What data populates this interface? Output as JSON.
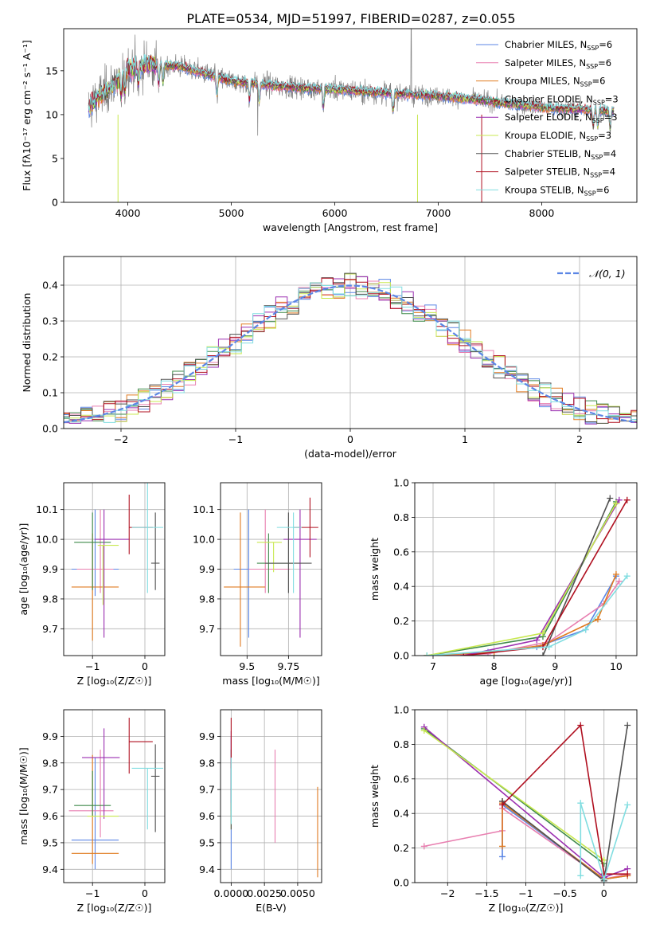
{
  "title": "PLATE=0534, MJD=51997, FIBERID=0287, z=0.055",
  "colors": {
    "Chabrier MILES": "#5b86e5",
    "Salpeter MILES": "#e87fb0",
    "Kroupa MILES": "#e07b20",
    "Chabrier ELODIE": "#3f8a4a",
    "Salpeter ELODIE": "#9b2fb0",
    "Kroupa ELODIE": "#c8e850",
    "Chabrier STELIB": "#505050",
    "Salpeter STELIB": "#b01020",
    "Kroupa STELIB": "#80dde0",
    "data": "#808080",
    "normal": "#5b86e5"
  },
  "chart_data": [
    {
      "id": "spectrum",
      "type": "line",
      "xlabel": "wavelength [Angstrom, rest frame]",
      "ylabel": "Flux [fλ10⁻¹⁷ erg cm⁻² s⁻¹ A⁻¹]",
      "xlim": [
        3380,
        8920
      ],
      "ylim": [
        0,
        19.8
      ],
      "xticks": [
        4000,
        5000,
        6000,
        7000,
        8000
      ],
      "yticks": [
        0,
        5,
        10,
        15
      ],
      "legend_position": "top-right",
      "legend": [
        {
          "label": "Chabrier MILES, N",
          "sub": "SSP",
          "eq": "=6",
          "key": "Chabrier MILES"
        },
        {
          "label": "Salpeter MILES, N",
          "sub": "SSP",
          "eq": "=6",
          "key": "Salpeter MILES"
        },
        {
          "label": "Kroupa MILES, N",
          "sub": "SSP",
          "eq": "=6",
          "key": "Kroupa MILES"
        },
        {
          "label": "Chabrier ELODIE, N",
          "sub": "SSP",
          "eq": "=3",
          "key": "Chabrier ELODIE"
        },
        {
          "label": "Salpeter ELODIE, N",
          "sub": "SSP",
          "eq": "=3",
          "key": "Salpeter ELODIE"
        },
        {
          "label": "Kroupa ELODIE, N",
          "sub": "SSP",
          "eq": "=3",
          "key": "Kroupa ELODIE"
        },
        {
          "label": "Chabrier STELIB, N",
          "sub": "SSP",
          "eq": "=4",
          "key": "Chabrier STELIB"
        },
        {
          "label": "Salpeter STELIB, N",
          "sub": "SSP",
          "eq": "=4",
          "key": "Salpeter STELIB"
        },
        {
          "label": "Kroupa STELIB, N",
          "sub": "SSP",
          "eq": "=6",
          "key": "Kroupa STELIB"
        }
      ],
      "continuum": [
        [
          3600,
          10.5
        ],
        [
          3700,
          11.8
        ],
        [
          3800,
          12.8
        ],
        [
          3900,
          13.8
        ],
        [
          4000,
          15.2
        ],
        [
          4200,
          15.8
        ],
        [
          4500,
          15.5
        ],
        [
          4800,
          14.5
        ],
        [
          5000,
          13.8
        ],
        [
          5200,
          13.6
        ],
        [
          5500,
          13.2
        ],
        [
          5800,
          13.0
        ],
        [
          6000,
          12.9
        ],
        [
          6300,
          12.6
        ],
        [
          6600,
          12.4
        ],
        [
          6900,
          12.2
        ],
        [
          7200,
          11.9
        ],
        [
          7500,
          11.5
        ],
        [
          7800,
          11.1
        ],
        [
          8100,
          10.7
        ],
        [
          8400,
          10.6
        ],
        [
          8700,
          10.4
        ]
      ],
      "data_range": [
        3620,
        8700
      ]
    },
    {
      "id": "residuals",
      "type": "histogram",
      "xlabel": "(data-model)/error",
      "ylabel": "Normed distribution",
      "xlim": [
        -2.5,
        2.5
      ],
      "ylim": [
        0,
        0.48
      ],
      "xticks": [
        -2,
        -1,
        0,
        1,
        2
      ],
      "yticks": [
        0.0,
        0.1,
        0.2,
        0.3,
        0.4
      ],
      "normal_label": "𝒩(0, 1)",
      "legend_position": "top-right",
      "bin_width": 0.1
    },
    {
      "id": "age-vs-Z",
      "type": "errorbar",
      "xlabel": "Z [log₁₀(Z/Z☉)]",
      "ylabel": "age  [log₁₀(age/yr)]",
      "xlim": [
        -1.55,
        0.38
      ],
      "ylim": [
        9.61,
        10.19
      ],
      "xticks": [
        -1,
        0
      ],
      "yticks": [
        9.7,
        9.8,
        9.9,
        10.0,
        10.1
      ],
      "points": [
        {
          "key": "Chabrier MILES",
          "x": -0.95,
          "y": 9.9,
          "xe": [
            0.45,
            0.45
          ],
          "ye": [
            0.09,
            0.2
          ]
        },
        {
          "key": "Salpeter MILES",
          "x": -0.85,
          "y": 9.9,
          "xe": [
            0.45,
            0.25
          ],
          "ye": [
            0.08,
            0.2
          ]
        },
        {
          "key": "Kroupa MILES",
          "x": -1.0,
          "y": 9.84,
          "xe": [
            0.4,
            0.5
          ],
          "ye": [
            0.18,
            0.18
          ]
        },
        {
          "key": "Chabrier ELODIE",
          "x": -1.0,
          "y": 9.99,
          "xe": [
            0.35,
            0.35
          ],
          "ye": [
            0.16,
            0.1
          ]
        },
        {
          "key": "Salpeter ELODIE",
          "x": -0.78,
          "y": 10.0,
          "xe": [
            0.18,
            0.48
          ],
          "ye": [
            0.33,
            0.1
          ]
        },
        {
          "key": "Kroupa ELODIE",
          "x": -0.8,
          "y": 9.98,
          "xe": [
            0.1,
            0.3
          ],
          "ye": [
            0.2,
            0.0
          ]
        },
        {
          "key": "Chabrier STELIB",
          "x": 0.2,
          "y": 9.92,
          "xe": [
            0.08,
            0.08
          ],
          "ye": [
            0.09,
            0.17
          ]
        },
        {
          "key": "Salpeter STELIB",
          "x": -0.3,
          "y": 10.04,
          "xe": [
            0.0,
            0.45
          ],
          "ye": [
            0.09,
            0.11
          ]
        },
        {
          "key": "Kroupa STELIB",
          "x": 0.05,
          "y": 10.04,
          "xe": [
            0.3,
            0.3
          ],
          "ye": [
            0.22,
            0.2
          ]
        }
      ]
    },
    {
      "id": "age-vs-mass",
      "type": "errorbar",
      "xlabel": "mass [log₁₀(M/M☉)]",
      "ylabel": "",
      "xlim": [
        9.34,
        9.95
      ],
      "ylim": [
        9.61,
        10.19
      ],
      "xticks": [
        9.5,
        9.75
      ],
      "yticks": [
        9.7,
        9.8,
        9.9,
        10.0,
        10.1
      ],
      "points": [
        {
          "key": "Chabrier MILES",
          "x": 9.51,
          "y": 9.9,
          "xe": [
            0.09,
            0.09
          ],
          "ye": [
            0.23,
            0.2
          ]
        },
        {
          "key": "Salpeter MILES",
          "x": 9.61,
          "y": 9.9,
          "xe": [
            0.1,
            0.15
          ],
          "ye": [
            0.08,
            0.2
          ]
        },
        {
          "key": "Kroupa MILES",
          "x": 9.46,
          "y": 9.84,
          "xe": [
            0.1,
            0.15
          ],
          "ye": [
            0.2,
            0.25
          ]
        },
        {
          "key": "Chabrier ELODIE",
          "x": 9.63,
          "y": 9.92,
          "xe": [
            0.07,
            0.15
          ],
          "ye": [
            0.1,
            0.1
          ]
        },
        {
          "key": "Salpeter ELODIE",
          "x": 9.82,
          "y": 10.0,
          "xe": [
            0.1,
            0.1
          ],
          "ye": [
            0.33,
            0.1
          ]
        },
        {
          "key": "Kroupa ELODIE",
          "x": 9.66,
          "y": 9.99,
          "xe": [
            0.1,
            0.05
          ],
          "ye": [
            0.1,
            0.0
          ]
        },
        {
          "key": "Chabrier STELIB",
          "x": 9.75,
          "y": 9.92,
          "xe": [
            0.14,
            0.14
          ],
          "ye": [
            0.1,
            0.17
          ]
        },
        {
          "key": "Salpeter STELIB",
          "x": 9.88,
          "y": 10.04,
          "xe": [
            0.1,
            0.05
          ],
          "ye": [
            0.1,
            0.1
          ]
        },
        {
          "key": "Kroupa STELIB",
          "x": 9.78,
          "y": 10.04,
          "xe": [
            0.1,
            0.05
          ],
          "ye": [
            0.22,
            0.05
          ]
        }
      ]
    },
    {
      "id": "weight-vs-age",
      "type": "line",
      "xlabel": "age  [log₁₀(age/yr)]",
      "ylabel": "mass weight",
      "xlim": [
        6.7,
        10.34
      ],
      "ylim": [
        0,
        1.0
      ],
      "xticks": [
        7,
        8,
        9,
        10
      ],
      "yticks": [
        0.0,
        0.2,
        0.4,
        0.6,
        0.8,
        1.0
      ],
      "series": [
        {
          "key": "Chabrier MILES",
          "x": [
            6.9,
            7.9,
            8.7,
            9.5,
            10.0
          ],
          "y": [
            0.0,
            0.02,
            0.05,
            0.15,
            0.46
          ]
        },
        {
          "key": "Salpeter MILES",
          "x": [
            6.9,
            7.9,
            8.9,
            9.8,
            10.05
          ],
          "y": [
            0.0,
            0.01,
            0.08,
            0.3,
            0.43
          ]
        },
        {
          "key": "Kroupa MILES",
          "x": [
            6.9,
            8.0,
            8.8,
            9.7,
            10.0
          ],
          "y": [
            0.0,
            0.02,
            0.06,
            0.21,
            0.47
          ]
        },
        {
          "key": "Chabrier ELODIE",
          "x": [
            6.9,
            8.8,
            10.0
          ],
          "y": [
            0.0,
            0.11,
            0.89
          ]
        },
        {
          "key": "Salpeter ELODIE",
          "x": [
            7.5,
            8.7,
            10.05
          ],
          "y": [
            0.0,
            0.09,
            0.9
          ]
        },
        {
          "key": "Kroupa ELODIE",
          "x": [
            6.9,
            8.8,
            10.0
          ],
          "y": [
            0.0,
            0.13,
            0.88
          ]
        },
        {
          "key": "Chabrier STELIB",
          "x": [
            7.5,
            8.8,
            9.9
          ],
          "y": [
            0.0,
            0.0,
            0.91
          ]
        },
        {
          "key": "Salpeter STELIB",
          "x": [
            7.5,
            8.8,
            10.18
          ],
          "y": [
            0.0,
            0.05,
            0.9
          ]
        },
        {
          "key": "Kroupa STELIB",
          "x": [
            6.9,
            8.9,
            9.5,
            10.18
          ],
          "y": [
            0.0,
            0.05,
            0.15,
            0.46
          ]
        }
      ]
    },
    {
      "id": "mass-vs-Z",
      "type": "errorbar",
      "xlabel": "Z [log₁₀(Z/Z☉)]",
      "ylabel": "mass [log₁₀(M/M☉)]",
      "xlim": [
        -1.55,
        0.38
      ],
      "ylim": [
        9.35,
        10.0
      ],
      "xticks": [
        -1,
        0
      ],
      "yticks": [
        9.4,
        9.5,
        9.6,
        9.7,
        9.8,
        9.9
      ],
      "points": [
        {
          "key": "Chabrier MILES",
          "x": -0.95,
          "y": 9.51,
          "xe": [
            0.45,
            0.45
          ],
          "ye": [
            0.11,
            0.31
          ]
        },
        {
          "key": "Salpeter MILES",
          "x": -0.85,
          "y": 9.62,
          "xe": [
            0.6,
            0.25
          ],
          "ye": [
            0.1,
            0.23
          ]
        },
        {
          "key": "Kroupa MILES",
          "x": -1.0,
          "y": 9.46,
          "xe": [
            0.4,
            0.5
          ],
          "ye": [
            0.04,
            0.37
          ]
        },
        {
          "key": "Chabrier ELODIE",
          "x": -1.0,
          "y": 9.64,
          "xe": [
            0.35,
            0.35
          ],
          "ye": [
            0.04,
            0.13
          ]
        },
        {
          "key": "Salpeter ELODIE",
          "x": -0.78,
          "y": 9.82,
          "xe": [
            0.42,
            0.3
          ],
          "ye": [
            0.23,
            0.11
          ]
        },
        {
          "key": "Kroupa ELODIE",
          "x": -0.8,
          "y": 9.6,
          "xe": [
            0.3,
            0.3
          ],
          "ye": [
            0.0,
            0.0
          ]
        },
        {
          "key": "Chabrier STELIB",
          "x": 0.2,
          "y": 9.75,
          "xe": [
            0.08,
            0.08
          ],
          "ye": [
            0.21,
            0.12
          ]
        },
        {
          "key": "Salpeter STELIB",
          "x": -0.3,
          "y": 9.88,
          "xe": [
            0.0,
            0.45
          ],
          "ye": [
            0.12,
            0.09
          ]
        },
        {
          "key": "Kroupa STELIB",
          "x": 0.05,
          "y": 9.78,
          "xe": [
            0.3,
            0.3
          ],
          "ye": [
            0.23,
            0.0
          ]
        }
      ]
    },
    {
      "id": "mass-vs-ebv",
      "type": "errorbar",
      "xlabel": "E(B-V)",
      "ylabel": "",
      "xlim": [
        -0.0008,
        0.0068
      ],
      "ylim": [
        9.35,
        10.0
      ],
      "xticks": [
        0.0,
        0.0025,
        0.005
      ],
      "xticklabels": [
        "0.0000",
        "0.0025",
        "0.0050"
      ],
      "yticks": [
        9.4,
        9.5,
        9.6,
        9.7,
        9.8,
        9.9
      ],
      "points": [
        {
          "key": "Chabrier MILES",
          "x": 0.0,
          "y": 9.6,
          "xe": [
            0,
            0
          ],
          "ye": [
            0.2,
            0.3
          ]
        },
        {
          "key": "Salpeter MILES",
          "x": 0.0033,
          "y": 9.62,
          "xe": [
            0,
            0
          ],
          "ye": [
            0.12,
            0.23
          ]
        },
        {
          "key": "Kroupa MILES",
          "x": 0.0065,
          "y": 9.54,
          "xe": [
            0,
            0
          ],
          "ye": [
            0.17,
            0.17
          ]
        },
        {
          "key": "Chabrier ELODIE",
          "x": 0.0,
          "y": 9.7,
          "xe": [
            0,
            0
          ],
          "ye": [
            0.1,
            0.1
          ]
        },
        {
          "key": "Salpeter ELODIE",
          "x": 0.0,
          "y": 9.82,
          "xe": [
            0,
            0
          ],
          "ye": [
            0.2,
            0.1
          ]
        },
        {
          "key": "Kroupa ELODIE",
          "x": 0.0,
          "y": 9.6,
          "xe": [
            0,
            0
          ],
          "ye": [
            0.05,
            0.05
          ]
        },
        {
          "key": "Chabrier STELIB",
          "x": 0.0,
          "y": 9.75,
          "xe": [
            0,
            0
          ],
          "ye": [
            0.2,
            0.1
          ]
        },
        {
          "key": "Salpeter STELIB",
          "x": 0.0,
          "y": 9.88,
          "xe": [
            0,
            0
          ],
          "ye": [
            0.1,
            0.09
          ]
        },
        {
          "key": "Kroupa STELIB",
          "x": 0.0,
          "y": 9.72,
          "xe": [
            0,
            0
          ],
          "ye": [
            0.15,
            0.1
          ]
        }
      ]
    },
    {
      "id": "weight-vs-Z",
      "type": "line",
      "xlabel": "Z [log₁₀(Z/Z☉)]",
      "ylabel": "mass weight",
      "xlim": [
        -2.42,
        0.42
      ],
      "ylim": [
        0,
        1.0
      ],
      "xticks": [
        -2.0,
        -1.5,
        -1.0,
        -0.5,
        0.0
      ],
      "yticks": [
        0.0,
        0.2,
        0.4,
        0.6,
        0.8,
        1.0
      ],
      "series": [
        {
          "key": "Chabrier MILES",
          "x": [
            -1.3,
            -1.3,
            -1.3,
            0.0,
            0.3
          ],
          "y": [
            0.15,
            0.47,
            0.45,
            0.02,
            0.04
          ]
        },
        {
          "key": "Salpeter MILES",
          "x": [
            -2.3,
            -1.3,
            -1.3,
            -1.3,
            0.0,
            0.3
          ],
          "y": [
            0.21,
            0.3,
            0.45,
            0.43,
            0.02,
            0.05
          ]
        },
        {
          "key": "Kroupa MILES",
          "x": [
            -1.3,
            -1.3,
            -1.3,
            0.0,
            0.3
          ],
          "y": [
            0.21,
            0.47,
            0.46,
            0.02,
            0.04
          ]
        },
        {
          "key": "Chabrier ELODIE",
          "x": [
            -2.3,
            0.0
          ],
          "y": [
            0.89,
            0.11
          ]
        },
        {
          "key": "Salpeter ELODIE",
          "x": [
            -2.3,
            0.0,
            0.3
          ],
          "y": [
            0.9,
            0.03,
            0.08
          ]
        },
        {
          "key": "Kroupa ELODIE",
          "x": [
            -2.3,
            0.0
          ],
          "y": [
            0.88,
            0.13
          ]
        },
        {
          "key": "Chabrier STELIB",
          "x": [
            -1.3,
            0.0,
            0.3
          ],
          "y": [
            0.47,
            0.01,
            0.91
          ]
        },
        {
          "key": "Salpeter STELIB",
          "x": [
            -1.3,
            -0.3,
            0.0,
            0.3
          ],
          "y": [
            0.45,
            0.91,
            0.05,
            0.05
          ]
        },
        {
          "key": "Kroupa STELIB",
          "x": [
            -0.3,
            -0.3,
            0.0,
            0.3
          ],
          "y": [
            0.04,
            0.46,
            0.02,
            0.45
          ]
        }
      ]
    }
  ]
}
